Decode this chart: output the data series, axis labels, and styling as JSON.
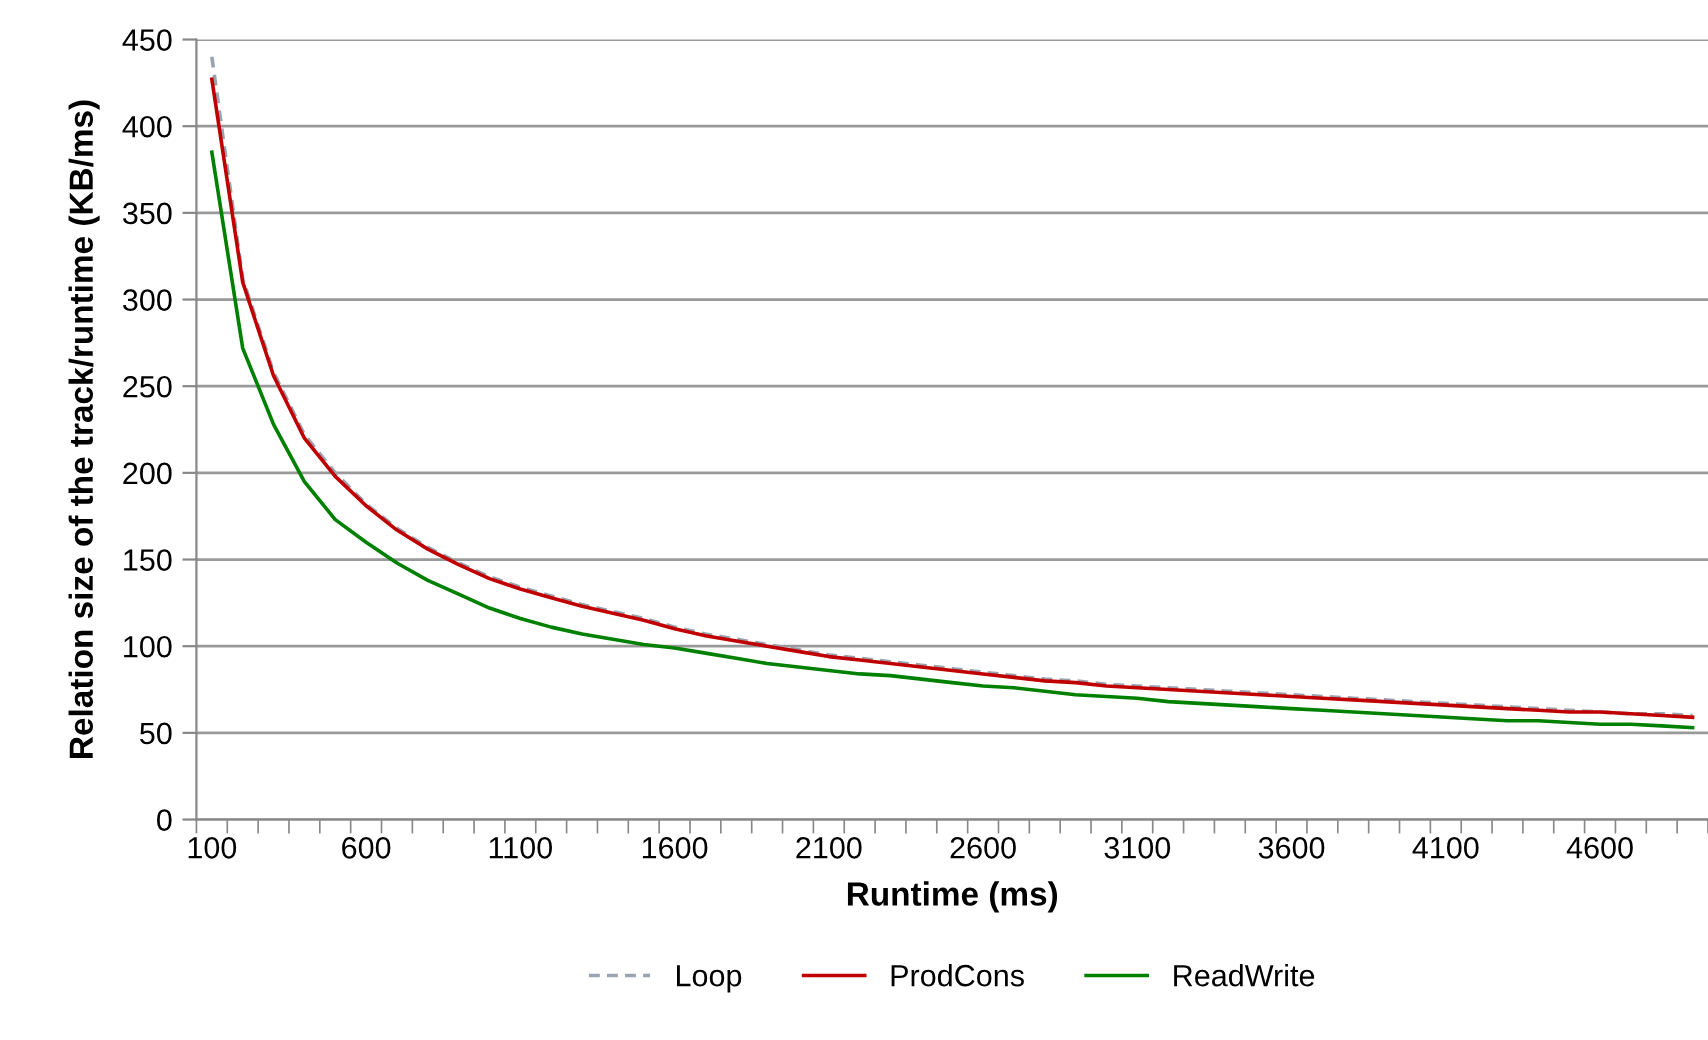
{
  "chart_data": {
    "type": "line",
    "xlabel": "Runtime (ms)",
    "ylabel": "Relation size of the track/runtime (KB/ms)",
    "categories": [
      "100",
      null,
      null,
      null,
      null,
      "600",
      null,
      null,
      null,
      null,
      "1100",
      null,
      null,
      null,
      null,
      "1600",
      null,
      null,
      null,
      null,
      "2100",
      null,
      null,
      null,
      null,
      "2600",
      null,
      null,
      null,
      null,
      "3100",
      null,
      null,
      null,
      null,
      "3600",
      null,
      null,
      null,
      null,
      "4100",
      null,
      null,
      null,
      null,
      "4600",
      null,
      null,
      null
    ],
    "series": [
      {
        "name": "Loop",
        "color": "#9aa3b0",
        "line_style": "dashed",
        "values": [
          440,
          312,
          258,
          222,
          200,
          182,
          168,
          157,
          148,
          140,
          134,
          129,
          124,
          120,
          116,
          111,
          107,
          104,
          101,
          98,
          95,
          93,
          91,
          89,
          87,
          85,
          83,
          81,
          80,
          78,
          77,
          76,
          75,
          74,
          73,
          72,
          71,
          70,
          69,
          68,
          67,
          66,
          65,
          64,
          63,
          62,
          61,
          61,
          60
        ]
      },
      {
        "name": "ProdCons",
        "color": "#c00000",
        "line_style": "solid",
        "values": [
          427,
          310,
          256,
          220,
          198,
          181,
          167,
          156,
          147,
          139,
          133,
          128,
          123,
          119,
          115,
          110,
          106,
          103,
          100,
          97,
          94,
          92,
          90,
          88,
          86,
          84,
          82,
          80,
          79,
          77,
          76,
          75,
          74,
          73,
          72,
          71,
          70,
          69,
          68,
          67,
          66,
          65,
          64,
          63,
          62,
          62,
          61,
          60,
          59
        ]
      },
      {
        "name": "ReadWrite",
        "color": "#008000",
        "line_style": "solid",
        "values": [
          385,
          272,
          228,
          195,
          173,
          160,
          148,
          138,
          130,
          122,
          116,
          111,
          107,
          104,
          101,
          99,
          96,
          93,
          90,
          88,
          86,
          84,
          83,
          81,
          79,
          77,
          76,
          74,
          72,
          71,
          70,
          68,
          67,
          66,
          65,
          64,
          63,
          62,
          61,
          60,
          59,
          58,
          57,
          57,
          56,
          55,
          55,
          54,
          53
        ]
      }
    ],
    "ylim": [
      0,
      450
    ],
    "yticks": [
      0,
      50,
      100,
      150,
      200,
      250,
      300,
      350,
      400,
      450
    ],
    "grid": "y",
    "legend": "bottom",
    "marker": "none"
  }
}
